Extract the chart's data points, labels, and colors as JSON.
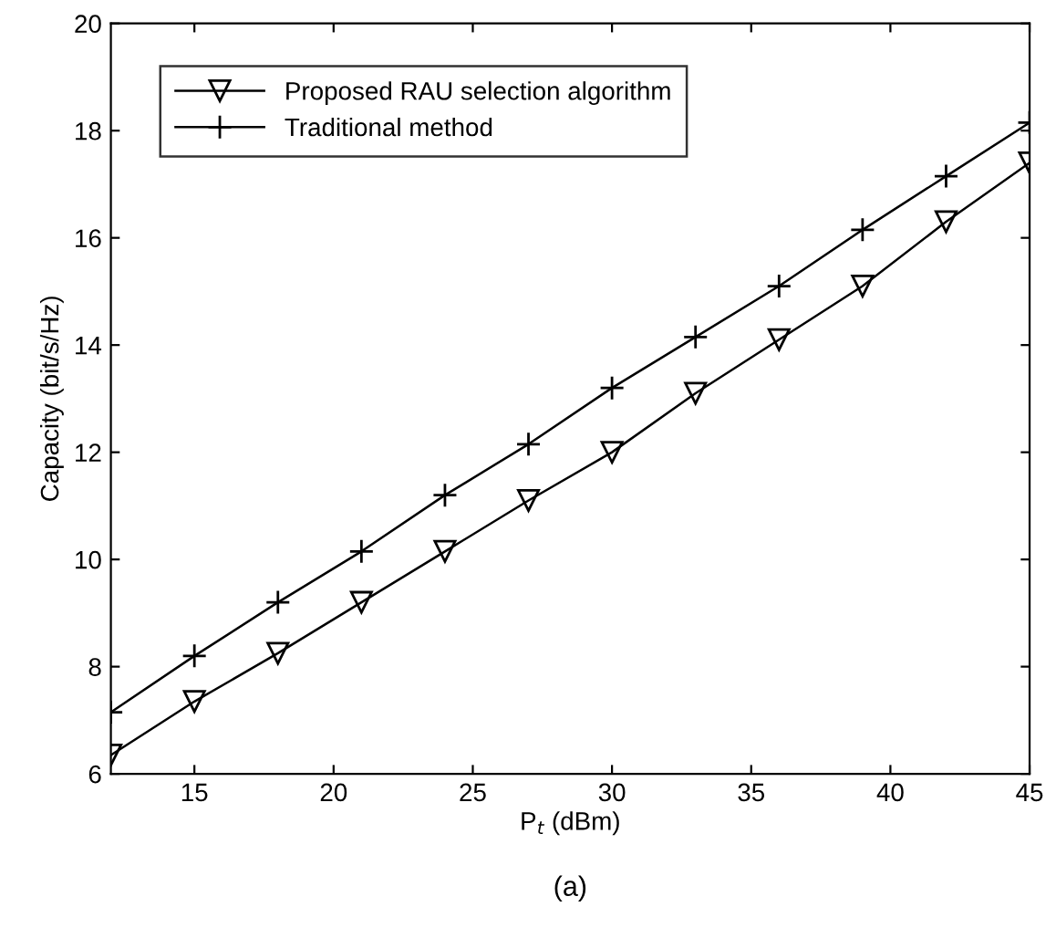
{
  "chart_data": {
    "type": "line",
    "xlabel": "P$_{t}$ (dBm)",
    "ylabel": "Capacity (bit/s/Hz)",
    "annotations": [
      "(a)"
    ],
    "x": [
      12,
      15,
      18,
      21,
      24,
      27,
      30,
      33,
      36,
      39,
      42,
      45
    ],
    "series": [
      {
        "name": "Proposed RAU selection algorithm",
        "color": "#000000",
        "marker": "triangle",
        "values": [
          6.35,
          7.35,
          8.25,
          9.2,
          10.15,
          11.1,
          12.0,
          13.1,
          14.1,
          15.1,
          16.3,
          17.4
        ]
      },
      {
        "name": "Traditional method",
        "color": "#000000",
        "marker": "cross",
        "values": [
          7.15,
          8.2,
          9.2,
          10.15,
          11.2,
          12.15,
          13.2,
          14.15,
          15.1,
          16.15,
          17.15,
          18.15
        ]
      }
    ],
    "xlim": [
      12,
      45
    ],
    "xticks": [
      15,
      20,
      25,
      30,
      35,
      40,
      45
    ],
    "ylim": [
      6,
      20
    ],
    "yticks": [
      6,
      8,
      10,
      12,
      14,
      16,
      18,
      20
    ],
    "grid": false,
    "legend": "top left",
    "line_style": "solid"
  }
}
